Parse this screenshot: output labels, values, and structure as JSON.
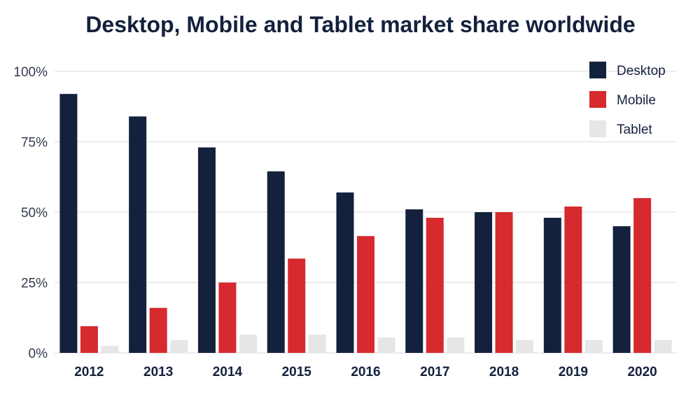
{
  "chart_data": {
    "type": "bar",
    "title": "Desktop, Mobile and Tablet market share worldwide",
    "xlabel": "",
    "ylabel": "",
    "categories": [
      "2012",
      "2013",
      "2014",
      "2015",
      "2016",
      "2017",
      "2018",
      "2019",
      "2020"
    ],
    "series": [
      {
        "name": "Desktop",
        "color": "#14213d",
        "values": [
          92,
          84,
          73,
          64.5,
          57,
          51,
          50,
          48,
          45
        ]
      },
      {
        "name": "Mobile",
        "color": "#d62a2e",
        "values": [
          9.5,
          16,
          25,
          33.5,
          41.5,
          48,
          50,
          52,
          55
        ]
      },
      {
        "name": "Tablet",
        "color": "#e6e6e6",
        "values": [
          2.5,
          4.5,
          6.5,
          6.5,
          5.5,
          5.5,
          4.5,
          4.5,
          4.5
        ]
      }
    ],
    "ylim": [
      0,
      100
    ],
    "y_ticks": [
      0,
      25,
      50,
      75,
      100
    ],
    "y_tick_labels": [
      "0%",
      "25%",
      "50%",
      "75%",
      "100%"
    ],
    "grid": true,
    "legend_position": "top-right"
  }
}
